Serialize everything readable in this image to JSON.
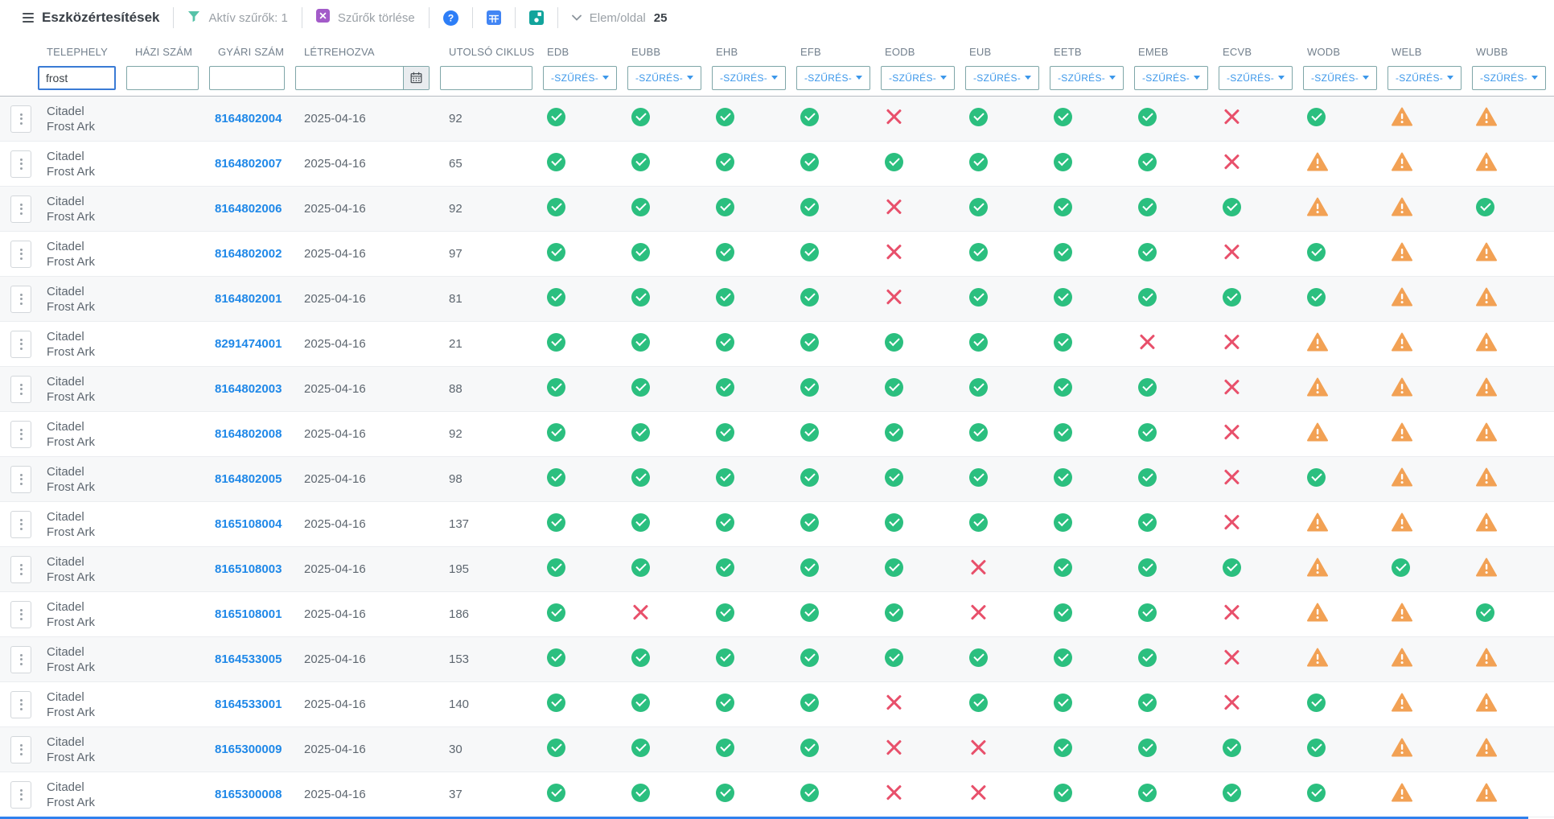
{
  "toolbar": {
    "title": "Eszközértesítések",
    "active_filters": "Aktív szűrők: 1",
    "clear_filters": "Szűrők törlése",
    "per_page_label": "Elem/oldal",
    "per_page_value": "25"
  },
  "filters": {
    "telephely_value": "frost",
    "dropdown_label": "-SZŰRÉS-"
  },
  "table": {
    "text_columns": [
      "TELEPHELY",
      "HÁZI SZÁM",
      "GYÁRI SZÁM",
      "LÉTREHOZVA",
      "UTOLSÓ CIKLUS"
    ],
    "status_columns": [
      "EDB",
      "EUBB",
      "EHB",
      "EFB",
      "EODB",
      "EUB",
      "EETB",
      "EMEB",
      "ECVB",
      "WODB",
      "WELB",
      "WUBB"
    ],
    "rows": [
      {
        "site_line1": "Citadel",
        "site_line2": "Frost Ark",
        "serial": "8164802004",
        "created": "2025-04-16",
        "last_cycle": "92",
        "statuses": [
          "ok",
          "ok",
          "ok",
          "ok",
          "fail",
          "ok",
          "ok",
          "ok",
          "fail",
          "ok",
          "warn",
          "warn"
        ]
      },
      {
        "site_line1": "Citadel",
        "site_line2": "Frost Ark",
        "serial": "8164802007",
        "created": "2025-04-16",
        "last_cycle": "65",
        "statuses": [
          "ok",
          "ok",
          "ok",
          "ok",
          "ok",
          "ok",
          "ok",
          "ok",
          "fail",
          "warn",
          "warn",
          "warn"
        ]
      },
      {
        "site_line1": "Citadel",
        "site_line2": "Frost Ark",
        "serial": "8164802006",
        "created": "2025-04-16",
        "last_cycle": "92",
        "statuses": [
          "ok",
          "ok",
          "ok",
          "ok",
          "fail",
          "ok",
          "ok",
          "ok",
          "ok",
          "warn",
          "warn",
          "ok"
        ]
      },
      {
        "site_line1": "Citadel",
        "site_line2": "Frost Ark",
        "serial": "8164802002",
        "created": "2025-04-16",
        "last_cycle": "97",
        "statuses": [
          "ok",
          "ok",
          "ok",
          "ok",
          "fail",
          "ok",
          "ok",
          "ok",
          "fail",
          "ok",
          "warn",
          "warn"
        ]
      },
      {
        "site_line1": "Citadel",
        "site_line2": "Frost Ark",
        "serial": "8164802001",
        "created": "2025-04-16",
        "last_cycle": "81",
        "statuses": [
          "ok",
          "ok",
          "ok",
          "ok",
          "fail",
          "ok",
          "ok",
          "ok",
          "ok",
          "ok",
          "warn",
          "warn"
        ]
      },
      {
        "site_line1": "Citadel",
        "site_line2": "Frost Ark",
        "serial": "8291474001",
        "created": "2025-04-16",
        "last_cycle": "21",
        "statuses": [
          "ok",
          "ok",
          "ok",
          "ok",
          "ok",
          "ok",
          "ok",
          "fail",
          "fail",
          "warn",
          "warn",
          "warn"
        ]
      },
      {
        "site_line1": "Citadel",
        "site_line2": "Frost Ark",
        "serial": "8164802003",
        "created": "2025-04-16",
        "last_cycle": "88",
        "statuses": [
          "ok",
          "ok",
          "ok",
          "ok",
          "ok",
          "ok",
          "ok",
          "ok",
          "fail",
          "warn",
          "warn",
          "warn"
        ]
      },
      {
        "site_line1": "Citadel",
        "site_line2": "Frost Ark",
        "serial": "8164802008",
        "created": "2025-04-16",
        "last_cycle": "92",
        "statuses": [
          "ok",
          "ok",
          "ok",
          "ok",
          "ok",
          "ok",
          "ok",
          "ok",
          "fail",
          "warn",
          "warn",
          "warn"
        ]
      },
      {
        "site_line1": "Citadel",
        "site_line2": "Frost Ark",
        "serial": "8164802005",
        "created": "2025-04-16",
        "last_cycle": "98",
        "statuses": [
          "ok",
          "ok",
          "ok",
          "ok",
          "ok",
          "ok",
          "ok",
          "ok",
          "fail",
          "ok",
          "warn",
          "warn"
        ]
      },
      {
        "site_line1": "Citadel",
        "site_line2": "Frost Ark",
        "serial": "8165108004",
        "created": "2025-04-16",
        "last_cycle": "137",
        "statuses": [
          "ok",
          "ok",
          "ok",
          "ok",
          "ok",
          "ok",
          "ok",
          "ok",
          "fail",
          "warn",
          "warn",
          "warn"
        ]
      },
      {
        "site_line1": "Citadel",
        "site_line2": "Frost Ark",
        "serial": "8165108003",
        "created": "2025-04-16",
        "last_cycle": "195",
        "statuses": [
          "ok",
          "ok",
          "ok",
          "ok",
          "ok",
          "fail",
          "ok",
          "ok",
          "ok",
          "warn",
          "ok",
          "warn"
        ]
      },
      {
        "site_line1": "Citadel",
        "site_line2": "Frost Ark",
        "serial": "8165108001",
        "created": "2025-04-16",
        "last_cycle": "186",
        "statuses": [
          "ok",
          "fail",
          "ok",
          "ok",
          "ok",
          "fail",
          "ok",
          "ok",
          "fail",
          "warn",
          "warn",
          "ok"
        ]
      },
      {
        "site_line1": "Citadel",
        "site_line2": "Frost Ark",
        "serial": "8164533005",
        "created": "2025-04-16",
        "last_cycle": "153",
        "statuses": [
          "ok",
          "ok",
          "ok",
          "ok",
          "ok",
          "ok",
          "ok",
          "ok",
          "fail",
          "warn",
          "warn",
          "warn"
        ]
      },
      {
        "site_line1": "Citadel",
        "site_line2": "Frost Ark",
        "serial": "8164533001",
        "created": "2025-04-16",
        "last_cycle": "140",
        "statuses": [
          "ok",
          "ok",
          "ok",
          "ok",
          "fail",
          "ok",
          "ok",
          "ok",
          "fail",
          "ok",
          "warn",
          "warn"
        ]
      },
      {
        "site_line1": "Citadel",
        "site_line2": "Frost Ark",
        "serial": "8165300009",
        "created": "2025-04-16",
        "last_cycle": "30",
        "statuses": [
          "ok",
          "ok",
          "ok",
          "ok",
          "fail",
          "fail",
          "ok",
          "ok",
          "ok",
          "ok",
          "warn",
          "warn"
        ]
      },
      {
        "site_line1": "Citadel",
        "site_line2": "Frost Ark",
        "serial": "8165300008",
        "created": "2025-04-16",
        "last_cycle": "37",
        "statuses": [
          "ok",
          "ok",
          "ok",
          "ok",
          "fail",
          "fail",
          "ok",
          "ok",
          "ok",
          "ok",
          "warn",
          "warn"
        ]
      }
    ]
  },
  "colors": {
    "ok_green": "#2bbf7f",
    "fail_red": "#e8506b",
    "warn_orange": "#f2a154",
    "link_blue": "#1f88e8",
    "filter_text_blue": "#3b97ea",
    "bottom_bar_blue": "#2f80ed"
  }
}
